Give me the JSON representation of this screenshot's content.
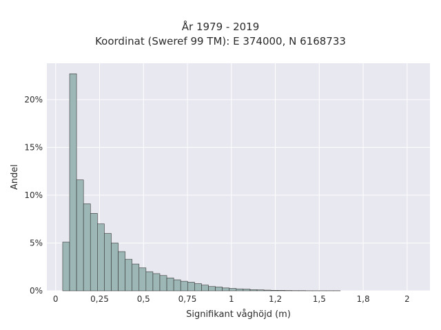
{
  "chart_data": {
    "type": "bar",
    "title": "År 1979 - 2019",
    "subtitle": "Koordinat (Sweref 99 TM): E 374000, N 6168733",
    "xlabel": "Signifikant våghöjd (m)",
    "ylabel": "Andel",
    "xlim": [
      -0.05,
      2.13
    ],
    "ylim": [
      0,
      23.8
    ],
    "xticks": [
      {
        "value": 0,
        "label": "0"
      },
      {
        "value": 0.25,
        "label": "0,25"
      },
      {
        "value": 0.5,
        "label": "0,5"
      },
      {
        "value": 0.75,
        "label": "0,75"
      },
      {
        "value": 1,
        "label": "1"
      },
      {
        "value": 1.25,
        "label": "1,2"
      },
      {
        "value": 1.5,
        "label": "1,5"
      },
      {
        "value": 1.75,
        "label": "1,8"
      },
      {
        "value": 2,
        "label": "2"
      }
    ],
    "yticks": [
      {
        "value": 0,
        "label": "0%"
      },
      {
        "value": 5,
        "label": "5%"
      },
      {
        "value": 10,
        "label": "10%"
      },
      {
        "value": 15,
        "label": "15%"
      },
      {
        "value": 20,
        "label": "20%"
      }
    ],
    "bin_width": 0.0395,
    "bin_start": 0.04,
    "values": [
      5.1,
      22.7,
      11.6,
      9.1,
      8.1,
      7.0,
      6.0,
      5.0,
      4.1,
      3.3,
      2.8,
      2.4,
      2.0,
      1.8,
      1.6,
      1.35,
      1.15,
      1.0,
      0.9,
      0.75,
      0.6,
      0.45,
      0.4,
      0.3,
      0.25,
      0.2,
      0.18,
      0.12,
      0.1,
      0.07,
      0.05,
      0.04,
      0.03,
      0.02,
      0.02,
      0.01,
      0.01,
      0.01,
      0.01,
      0.01
    ],
    "bar_color": "#9db7b7",
    "bar_edge_color": "#333333",
    "background_color": "#e8e8f0",
    "grid": true
  }
}
